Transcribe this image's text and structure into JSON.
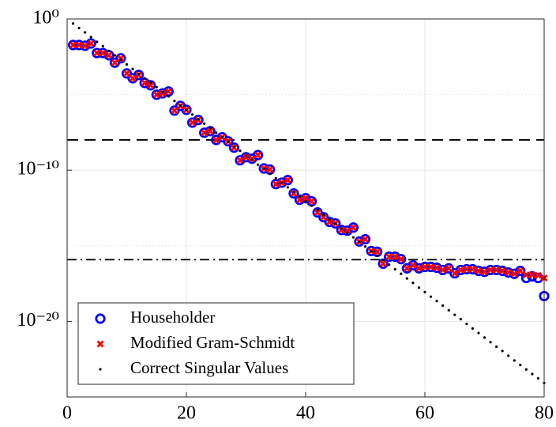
{
  "chart_data": {
    "type": "scatter",
    "x": [
      1,
      2,
      3,
      4,
      5,
      6,
      7,
      8,
      9,
      10,
      11,
      12,
      13,
      14,
      15,
      16,
      17,
      18,
      19,
      20,
      21,
      22,
      23,
      24,
      25,
      26,
      27,
      28,
      29,
      30,
      31,
      32,
      33,
      34,
      35,
      36,
      37,
      38,
      39,
      40,
      41,
      42,
      43,
      44,
      45,
      46,
      47,
      48,
      49,
      50,
      51,
      52,
      53,
      54,
      55,
      56,
      57,
      58,
      59,
      60,
      61,
      62,
      63,
      64,
      65,
      66,
      67,
      68,
      69,
      70,
      71,
      72,
      73,
      74,
      75,
      76,
      77,
      78,
      79,
      80
    ],
    "series": [
      {
        "name": "Householder",
        "color": "#0000ff",
        "marker": "circle",
        "values": [
          0.019,
          0.019,
          0.017,
          0.024,
          0.0056,
          0.0056,
          0.004,
          0.0013,
          0.0025,
          0.00025,
          0.00012,
          0.0002,
          5.9e-05,
          4.1e-05,
          9.8e-06,
          1.2e-05,
          1.6e-05,
          8.7e-07,
          1.8e-06,
          9.8e-07,
          1.4e-07,
          2.1e-07,
          3e-08,
          3.8e-08,
          1e-08,
          1.5e-08,
          8.1e-09,
          3.1e-09,
          4.5e-10,
          7.2e-10,
          5.7e-10,
          1e-09,
          1.3e-10,
          1.1e-10,
          1.2e-11,
          1.5e-11,
          2.2e-11,
          2.9e-12,
          1.1e-12,
          1.4e-12,
          8.7e-13,
          1.6e-13,
          7.8e-14,
          3.8e-14,
          3e-14,
          1.1e-14,
          1e-14,
          1.6e-14,
          1.9e-15,
          2.7e-15,
          4.5e-16,
          4e-16,
          6.5e-17,
          1.9e-16,
          1.9e-16,
          1.3e-16,
          3.2e-17,
          5.1e-17,
          3.2e-17,
          4e-17,
          4e-17,
          3.5e-17,
          2.5e-17,
          3.2e-17,
          1.5e-17,
          2.5e-17,
          2.8e-17,
          2.8e-17,
          2.2e-17,
          1.9e-17,
          2.5e-17,
          2.5e-17,
          2.2e-17,
          1.7e-17,
          1.4e-17,
          2.2e-17,
          7.4e-18,
          9.5e-18,
          7.4e-18,
          4.7e-19
        ]
      },
      {
        "name": "Modified Gram-Schmidt",
        "color": "#ff0000",
        "marker": "x",
        "values": [
          0.019,
          0.019,
          0.017,
          0.024,
          0.0056,
          0.0056,
          0.004,
          0.0013,
          0.0025,
          0.00025,
          0.00012,
          0.0002,
          5.9e-05,
          4.1e-05,
          9.8e-06,
          1.2e-05,
          1.6e-05,
          8.7e-07,
          1.8e-06,
          9.8e-07,
          1.4e-07,
          2.1e-07,
          3e-08,
          3.8e-08,
          1e-08,
          1.5e-08,
          8.1e-09,
          3.1e-09,
          4.5e-10,
          7.2e-10,
          5.7e-10,
          1e-09,
          1.3e-10,
          1.1e-10,
          1.2e-11,
          1.5e-11,
          2.2e-11,
          2.9e-12,
          1.1e-12,
          1.4e-12,
          8.7e-13,
          1.6e-13,
          7.8e-14,
          3.8e-14,
          3e-14,
          1.1e-14,
          1e-14,
          1.6e-14,
          1.9e-15,
          2.7e-15,
          4.5e-16,
          4e-16,
          6.5e-17,
          1.9e-16,
          1.9e-16,
          1.3e-16,
          3.2e-17,
          5.1e-17,
          3.2e-17,
          4e-17,
          4e-17,
          3.5e-17,
          2.5e-17,
          3.2e-17,
          1.5e-17,
          2.5e-17,
          2.8e-17,
          2.8e-17,
          2.2e-17,
          1.9e-17,
          2.5e-17,
          2.5e-17,
          2.2e-17,
          1.7e-17,
          1.4e-17,
          2.2e-17,
          1.2e-17,
          1.2e-17,
          1.1e-17,
          7.4e-18
        ]
      },
      {
        "name": "Correct Singular Values",
        "color": "#000000",
        "marker": "dot",
        "values": [
          0.5,
          0.25,
          0.13,
          0.063,
          0.031,
          0.016,
          0.0078,
          0.0039,
          0.002,
          0.00098,
          0.00049,
          0.00024,
          0.00012,
          6.1e-05,
          3.1e-05,
          1.5e-05,
          7.6e-06,
          3.8e-06,
          1.9e-06,
          9.5e-07,
          4.8e-07,
          2.4e-07,
          1.2e-07,
          6e-08,
          3e-08,
          1.5e-08,
          7.5e-09,
          3.7e-09,
          1.9e-09,
          9.3e-10,
          4.7e-10,
          2.3e-10,
          1.2e-10,
          5.8e-11,
          2.9e-11,
          1.5e-11,
          7.3e-12,
          3.6e-12,
          1.8e-12,
          9.1e-13,
          4.5e-13,
          2.3e-13,
          1.1e-13,
          5.7e-14,
          2.8e-14,
          1.4e-14,
          7.1e-15,
          3.6e-15,
          1.8e-15,
          8.9e-16,
          4.4e-16,
          2.2e-16,
          1.1e-16,
          5.6e-17,
          2.8e-17,
          1.4e-17,
          6.9e-18,
          3.5e-18,
          1.7e-18,
          8.7e-19,
          4.3e-19,
          2.2e-19,
          1.1e-19,
          5.4e-20,
          2.7e-20,
          1.4e-20,
          6.8e-21,
          3.4e-21,
          1.7e-21,
          8.5e-22,
          4.2e-22,
          2.1e-22,
          1.1e-22,
          5.3e-23,
          2.6e-23,
          1.3e-23,
          6.6e-24,
          3.3e-24,
          1.7e-24,
          8.3e-25
        ]
      }
    ],
    "xlim": [
      0,
      80
    ],
    "xticks": [
      0,
      20,
      40,
      60,
      80
    ],
    "ylim": [
      1e-25,
      1
    ],
    "yticks": [
      {
        "value": 1,
        "label": "10⁰"
      },
      {
        "value": 1e-10,
        "label": "10⁻¹⁰"
      },
      {
        "value": 1e-20,
        "label": "10⁻²⁰"
      }
    ],
    "yminor": [
      1e-05,
      1e-15
    ],
    "ylog": true,
    "grid": true,
    "hlines": [
      {
        "value": 1e-08,
        "style": "dashed"
      },
      {
        "value": 1.2e-16,
        "style": "dashdot"
      }
    ],
    "legend": "lower left"
  }
}
